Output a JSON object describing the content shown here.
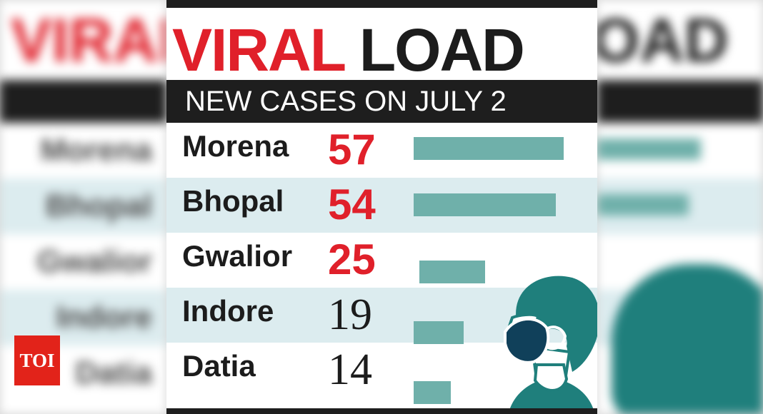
{
  "chart_data": {
    "type": "bar",
    "orientation": "horizontal",
    "title": "VIRAL LOAD",
    "title_words": [
      "VIRAL",
      "LOAD"
    ],
    "subtitle": "NEW CASES ON JULY 2",
    "categories": [
      "Morena",
      "Bhopal",
      "Gwalior",
      "Indore",
      "Datia"
    ],
    "values": [
      57,
      54,
      25,
      19,
      14
    ],
    "value_labels": [
      "57",
      "54",
      "25",
      "19",
      "14"
    ],
    "highlight": [
      true,
      true,
      true,
      false,
      false
    ],
    "xlabel": "",
    "ylabel": "",
    "xlim": [
      0,
      57
    ],
    "grid": false,
    "legend": "none"
  },
  "colors": {
    "highlight_red": "#e0202a",
    "bar_teal": "#6fb0aa",
    "band_dark": "#1e1e1e",
    "row_tint": "#dcecef",
    "figure_teal": "#1f7f7c",
    "mask_navy": "#10405a"
  },
  "icons": [
    "masked-person-icon"
  ],
  "logo": {
    "text": "TOI"
  }
}
